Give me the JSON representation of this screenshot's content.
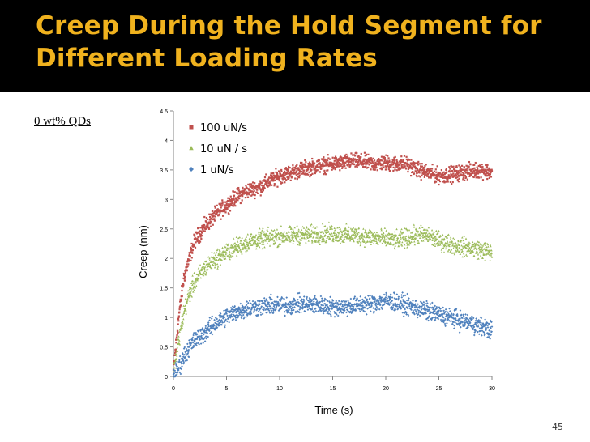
{
  "slide": {
    "title_line1": "Creep During the Hold Segment for",
    "title_line2": "Different Loading Rates",
    "subtitle": "0 wt% QDs",
    "slide_number": "45"
  },
  "colors": {
    "title_bg": "#000000",
    "title_text": "#f0b21e",
    "series_100": "#c0504d",
    "series_10": "#9bbb59",
    "series_1": "#4f81bd"
  },
  "chart_data": {
    "type": "scatter",
    "title": "",
    "xlabel": "Time (s)",
    "ylabel": "Creep (nm)",
    "xlim": [
      0,
      30
    ],
    "ylim": [
      0,
      4.5
    ],
    "xticks": [
      "0",
      "5",
      "10",
      "15",
      "20",
      "25",
      "30"
    ],
    "yticks": [
      "0",
      "0.5",
      "1",
      "1.5",
      "2",
      "2.5",
      "3",
      "3.5",
      "4",
      "4.5"
    ],
    "grid": false,
    "legend_position": "top-left",
    "series": [
      {
        "name": "100 uN/s",
        "marker": "square",
        "color": "#c0504d",
        "x": [
          0,
          0.5,
          1,
          1.5,
          2,
          3,
          4,
          5,
          6,
          7,
          8,
          9,
          10,
          11,
          12,
          13,
          14,
          15,
          16,
          17,
          18,
          19,
          20,
          21,
          22,
          23,
          24,
          25,
          26,
          27,
          28,
          29,
          30
        ],
        "y": [
          0.1,
          1.0,
          1.7,
          2.0,
          2.3,
          2.55,
          2.75,
          2.9,
          3.05,
          3.15,
          3.2,
          3.3,
          3.4,
          3.45,
          3.5,
          3.55,
          3.58,
          3.6,
          3.62,
          3.65,
          3.63,
          3.6,
          3.62,
          3.6,
          3.6,
          3.5,
          3.45,
          3.4,
          3.42,
          3.45,
          3.48,
          3.5,
          3.45
        ],
        "spread": 0.12
      },
      {
        "name": "10 uN / s",
        "marker": "triangle",
        "color": "#9bbb59",
        "x": [
          0,
          0.5,
          1,
          1.5,
          2,
          3,
          4,
          5,
          6,
          7,
          8,
          9,
          10,
          11,
          12,
          13,
          14,
          15,
          16,
          17,
          18,
          19,
          20,
          21,
          22,
          23,
          24,
          25,
          26,
          27,
          28,
          29,
          30
        ],
        "y": [
          0.05,
          0.6,
          1.1,
          1.4,
          1.6,
          1.85,
          2.0,
          2.1,
          2.2,
          2.28,
          2.32,
          2.35,
          2.37,
          2.38,
          2.4,
          2.4,
          2.42,
          2.42,
          2.4,
          2.4,
          2.38,
          2.35,
          2.33,
          2.3,
          2.35,
          2.4,
          2.38,
          2.3,
          2.25,
          2.2,
          2.18,
          2.15,
          2.1
        ],
        "spread": 0.14
      },
      {
        "name": "1 uN/s",
        "marker": "diamond",
        "color": "#4f81bd",
        "x": [
          0,
          0.5,
          1,
          1.5,
          2,
          3,
          4,
          5,
          6,
          7,
          8,
          9,
          10,
          11,
          12,
          13,
          14,
          15,
          16,
          17,
          18,
          19,
          20,
          21,
          22,
          23,
          24,
          25,
          26,
          27,
          28,
          29,
          30
        ],
        "y": [
          0.02,
          0.15,
          0.35,
          0.5,
          0.6,
          0.75,
          0.9,
          1.02,
          1.1,
          1.15,
          1.18,
          1.2,
          1.2,
          1.2,
          1.22,
          1.22,
          1.2,
          1.18,
          1.18,
          1.2,
          1.22,
          1.25,
          1.28,
          1.25,
          1.2,
          1.15,
          1.1,
          1.05,
          1.0,
          0.95,
          0.9,
          0.85,
          0.78
        ],
        "spread": 0.14
      }
    ]
  }
}
